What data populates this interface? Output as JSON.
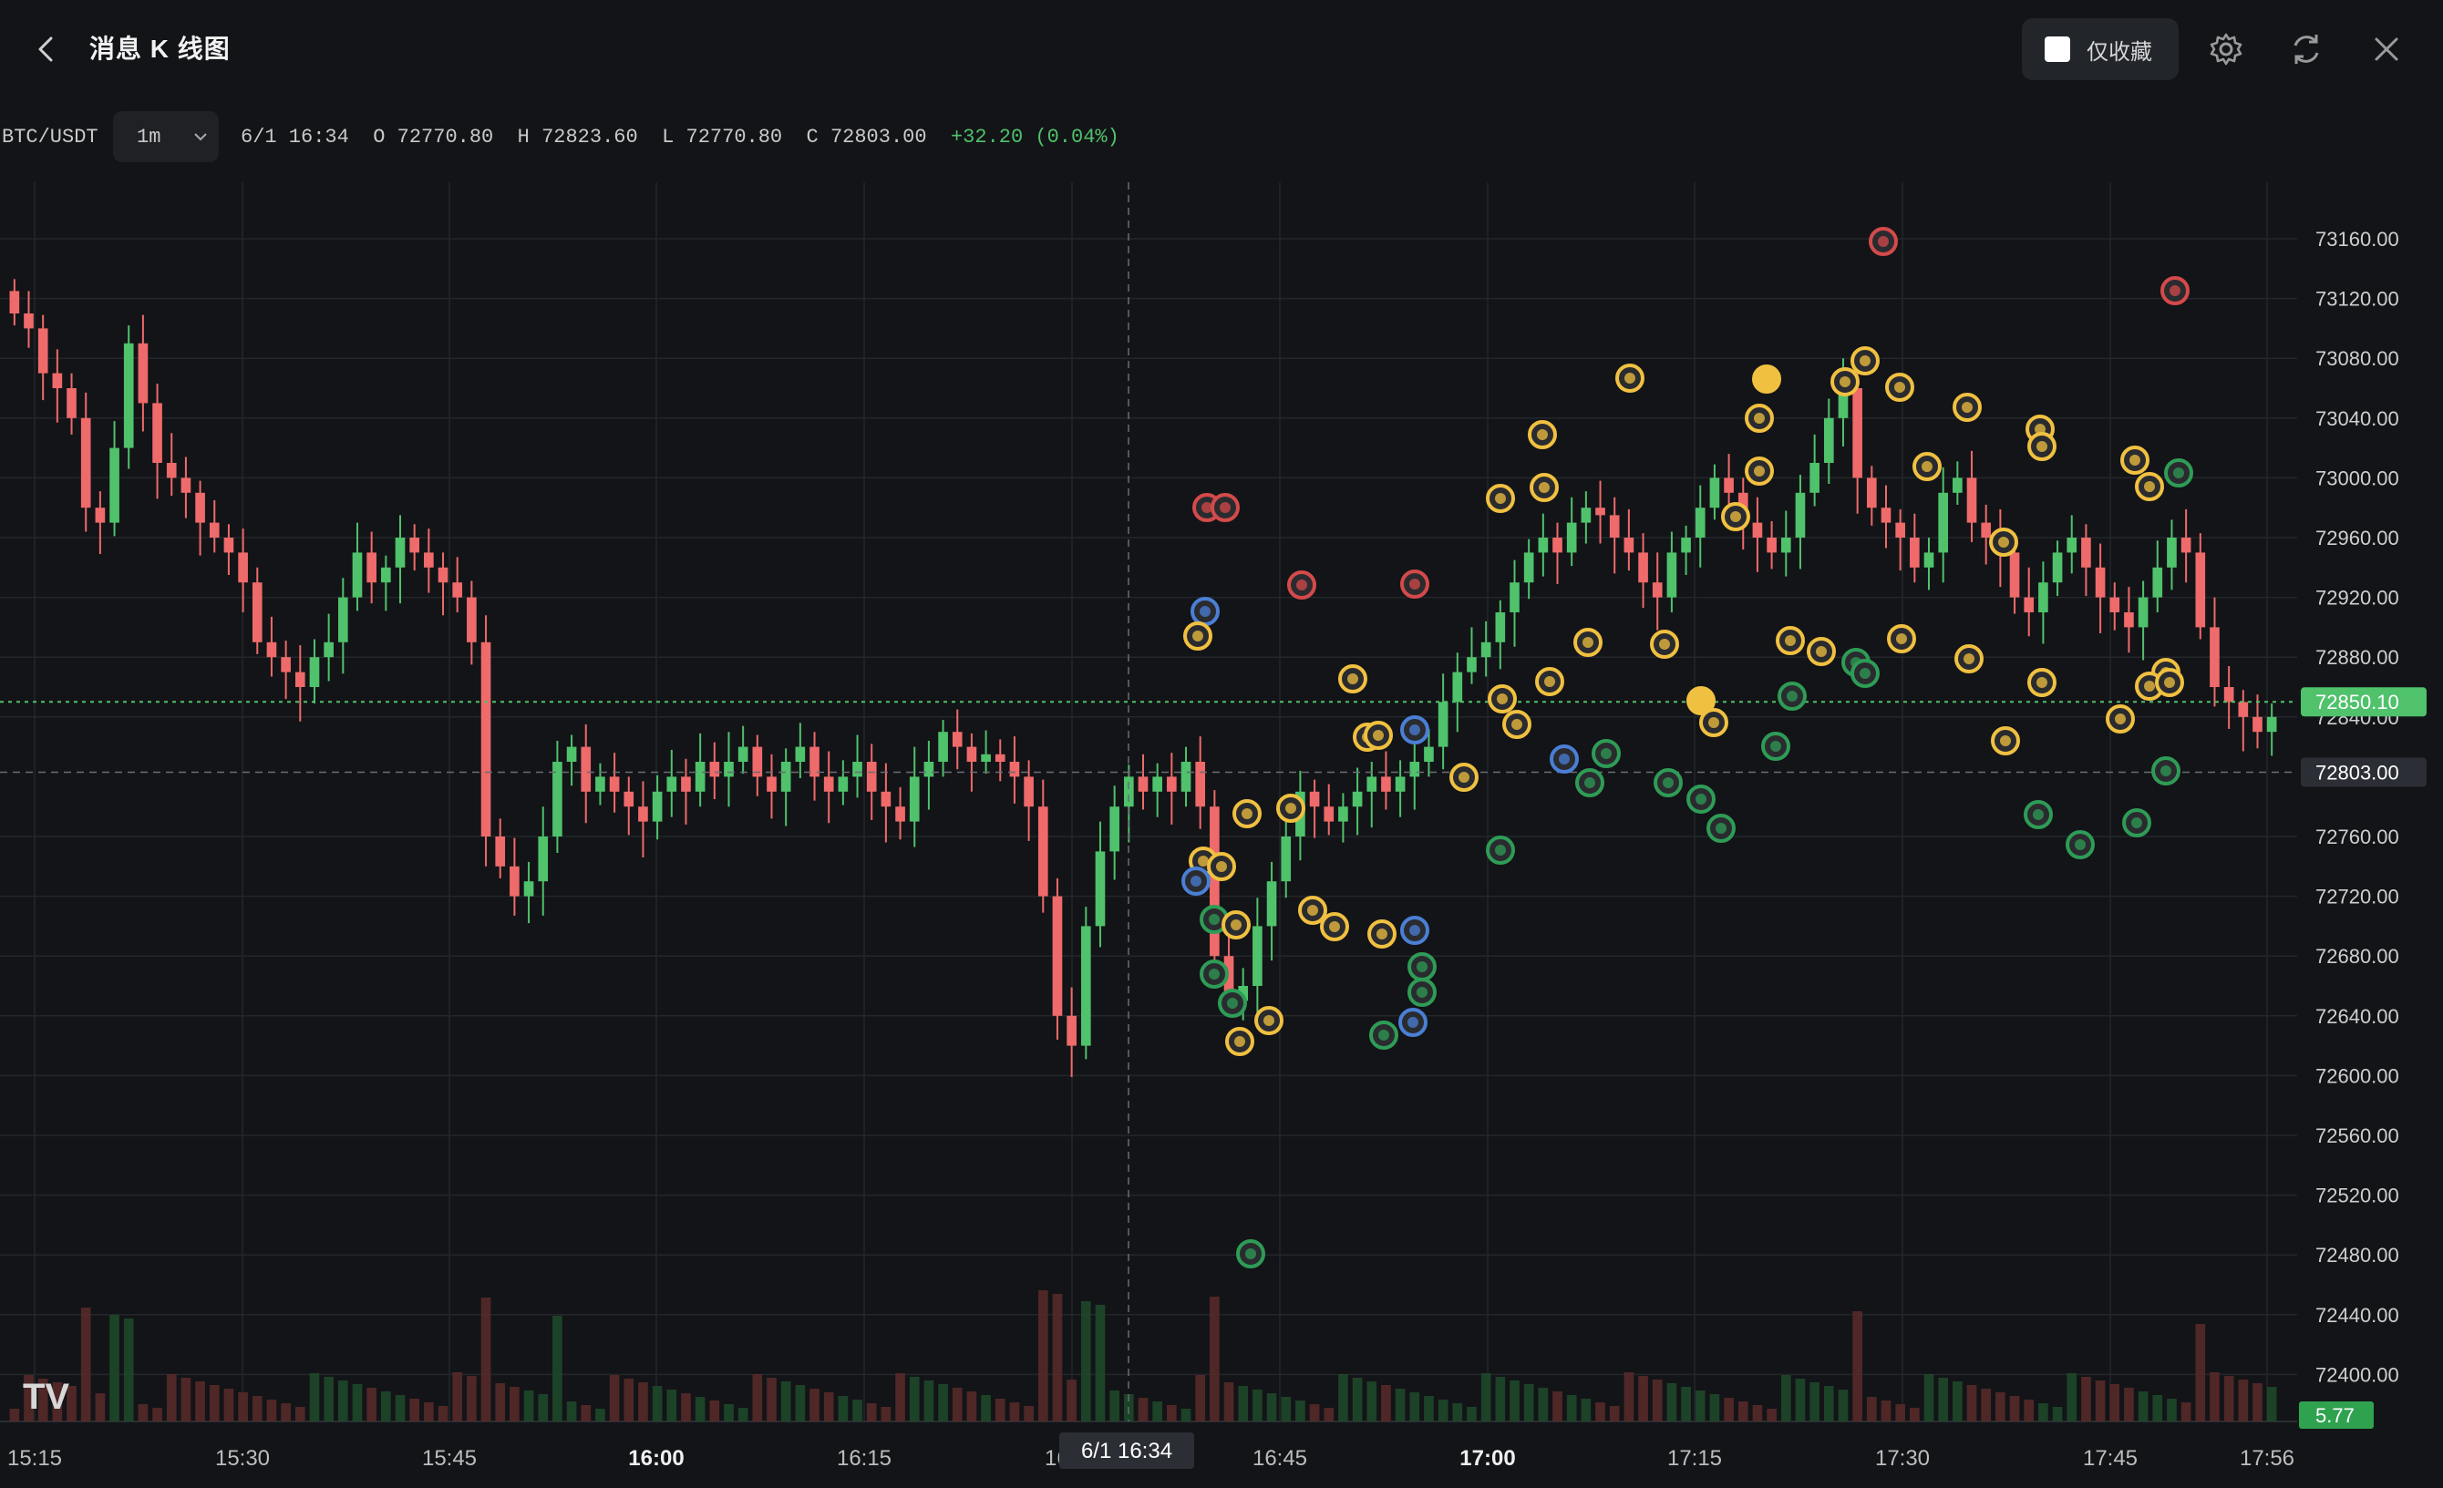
{
  "header": {
    "title": "消息 K 线图",
    "favorites_only_label": "仅收藏",
    "icons": [
      "chevron-left-icon",
      "gear-icon",
      "refresh-icon",
      "close-icon"
    ]
  },
  "toolbar": {
    "symbol": "BTC/USDT",
    "interval": "1m",
    "crosshair_time": "6/1 16:34",
    "open_label": "O",
    "open": "72770.80",
    "high_label": "H",
    "high": "72823.60",
    "low_label": "L",
    "low": "72770.80",
    "close_label": "C",
    "close": "72803.00",
    "change": "+32.20 (0.04%)"
  },
  "colors": {
    "up": "#4fc26b",
    "down": "#ef6a6a",
    "background": "#131417",
    "grid": "#23262b",
    "news_yellow": "#f0c040",
    "news_blue": "#4a7fd6",
    "news_green": "#2e9c56",
    "news_red": "#d44a4a"
  },
  "chart_data": {
    "type": "candlestick",
    "interval": "1m",
    "x_ticks": [
      "15:15",
      "15:30",
      "15:45",
      "16:00",
      "16:15",
      "16:30",
      "16:45",
      "17:00",
      "17:15",
      "17:30",
      "17:45",
      "17:56"
    ],
    "x_ticks_bold": [
      "16:00",
      "17:00"
    ],
    "y_ticks": [
      "73160.00",
      "73120.00",
      "73080.00",
      "73040.00",
      "73000.00",
      "72960.00",
      "72920.00",
      "72880.00",
      "72840.00",
      "72760.00",
      "72720.00",
      "72680.00",
      "72640.00",
      "72600.00",
      "72560.00",
      "72520.00",
      "72480.00",
      "72440.00",
      "72400.00"
    ],
    "ylim": [
      72380,
      73180
    ],
    "grid": true,
    "last_price": "72850.10",
    "last_price_value": 72850.1,
    "crosshair_price": "72803.00",
    "crosshair_price_value": 72803.0,
    "crosshair_time_label": "6/1 16:34",
    "volume_label": "5.77",
    "close_series": [
      73110,
      73100,
      73070,
      73060,
      73040,
      72980,
      72970,
      73020,
      73090,
      73050,
      73010,
      73000,
      72990,
      72970,
      72960,
      72950,
      72930,
      72890,
      72880,
      72870,
      72860,
      72880,
      72890,
      72920,
      72950,
      72930,
      72940,
      72960,
      72950,
      72940,
      72930,
      72920,
      72890,
      72760,
      72740,
      72720,
      72730,
      72760,
      72810,
      72820,
      72790,
      72800,
      72790,
      72780,
      72770,
      72790,
      72800,
      72790,
      72810,
      72800,
      72810,
      72820,
      72800,
      72790,
      72810,
      72820,
      72800,
      72790,
      72800,
      72810,
      72790,
      72780,
      72770,
      72800,
      72810,
      72830,
      72820,
      72810,
      72815,
      72810,
      72800,
      72780,
      72720,
      72640,
      72620,
      72700,
      72750,
      72780,
      72800,
      72790,
      72800,
      72790,
      72810,
      72780,
      72680,
      72650,
      72660,
      72700,
      72730,
      72760,
      72790,
      72780,
      72770,
      72780,
      72790,
      72800,
      72790,
      72800,
      72810,
      72820,
      72850,
      72870,
      72880,
      72890,
      72910,
      72930,
      72950,
      72960,
      72950,
      72970,
      72980,
      72975,
      72960,
      72950,
      72930,
      72920,
      72950,
      72960,
      72980,
      73000,
      72990,
      72970,
      72960,
      72950,
      72960,
      72990,
      73010,
      73040,
      73060,
      73000,
      72980,
      72970,
      72960,
      72940,
      72950,
      72990,
      73000,
      72970,
      72960,
      72950,
      72920,
      72910,
      72930,
      72950,
      72960,
      72940,
      72920,
      72910,
      72900,
      72920,
      72940,
      72960,
      72950,
      72900,
      72860,
      72850,
      72840,
      72830,
      72840
    ]
  },
  "news_markers": {
    "count_visible": 92,
    "color_types": [
      "yellow",
      "blue",
      "green",
      "red"
    ]
  },
  "watermark": "TV"
}
